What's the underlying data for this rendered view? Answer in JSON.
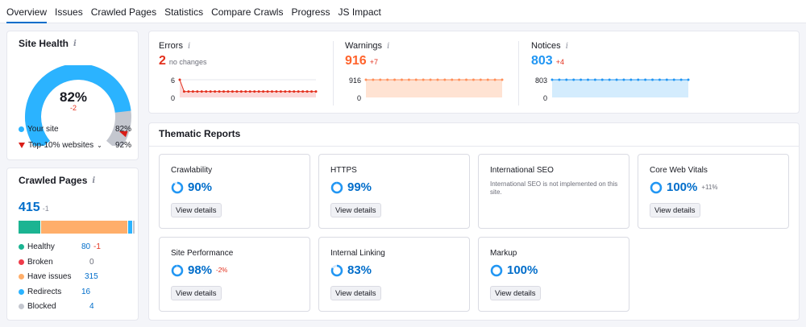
{
  "tabs": [
    "Overview",
    "Issues",
    "Crawled Pages",
    "Statistics",
    "Compare Crawls",
    "Progress",
    "JS Impact"
  ],
  "site_health": {
    "title": "Site Health",
    "value": "82%",
    "delta": "-2",
    "score": 0.82,
    "top10": 0.92,
    "legend": [
      {
        "label": "Your site",
        "value": "82%"
      },
      {
        "label": "Top-10% websites",
        "value": "92%"
      }
    ]
  },
  "crawled_pages": {
    "title": "Crawled Pages",
    "total": "415",
    "delta": "-1",
    "rows": [
      {
        "label": "Healthy",
        "value": "80",
        "delta": "-1",
        "color": "#1bb492",
        "count": 80
      },
      {
        "label": "Broken",
        "value": "0",
        "delta": "",
        "color": "#ef3c4a",
        "count": 0
      },
      {
        "label": "Have issues",
        "value": "315",
        "delta": "",
        "color": "#ffae6a",
        "count": 315
      },
      {
        "label": "Redirects",
        "value": "16",
        "delta": "",
        "color": "#2bb3ff",
        "count": 16
      },
      {
        "label": "Blocked",
        "value": "4",
        "delta": "",
        "color": "#c4c7cf",
        "count": 4
      }
    ]
  },
  "metrics": {
    "errors": {
      "label": "Errors",
      "value": "2",
      "sub": "no changes",
      "ymax": "6",
      "ymin": "0",
      "color": "#e3301d"
    },
    "warnings": {
      "label": "Warnings",
      "value": "916",
      "sub": "+7",
      "ymax": "916",
      "ymin": "0",
      "color": "#ff642d"
    },
    "notices": {
      "label": "Notices",
      "value": "803",
      "sub": "+4",
      "ymax": "803",
      "ymin": "0",
      "color": "#2196f3"
    }
  },
  "thematic": {
    "title": "Thematic Reports",
    "view_details": "View details",
    "cards": [
      {
        "title": "Crawlability",
        "value": "90%",
        "delta": "",
        "pct": 90
      },
      {
        "title": "HTTPS",
        "value": "99%",
        "delta": "",
        "pct": 99
      },
      {
        "title": "International SEO",
        "message": "International SEO is not implemented on this site."
      },
      {
        "title": "Core Web Vitals",
        "value": "100%",
        "delta": "+11%",
        "pct": 100
      },
      {
        "title": "Site Performance",
        "value": "98%",
        "delta": "-2%",
        "pct": 98
      },
      {
        "title": "Internal Linking",
        "value": "83%",
        "delta": "",
        "pct": 83
      },
      {
        "title": "Markup",
        "value": "100%",
        "delta": "",
        "pct": 100
      }
    ]
  }
}
